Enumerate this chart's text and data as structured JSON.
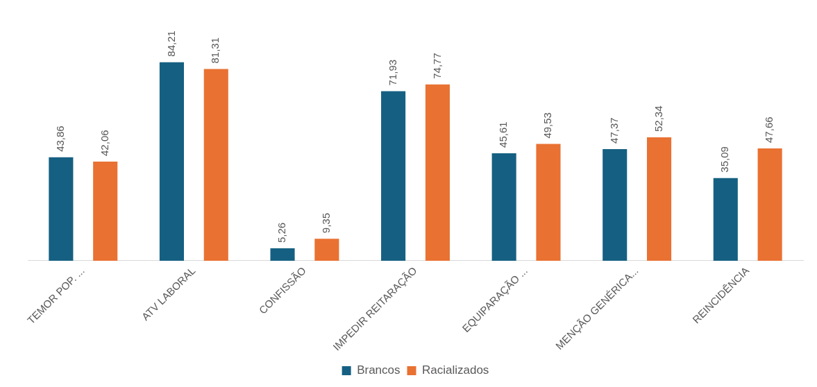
{
  "chart_data": {
    "type": "bar",
    "categories": [
      "TEMOR POP. ...",
      "ATV LABORAL",
      "CONFISSÃO",
      "IMPEDIR REITARAÇÃO",
      "EQUIPARAÇÃO ...",
      "MENÇÃO GENÉRICA...",
      "REINCIDÊNCIA"
    ],
    "series": [
      {
        "name": "Brancos",
        "color": "#156082",
        "values": [
          43.86,
          84.21,
          5.26,
          71.93,
          45.61,
          47.37,
          35.09
        ],
        "value_labels": [
          "43,86",
          "84,21",
          "5,26",
          "71,93",
          "45,61",
          "47,37",
          "35,09"
        ]
      },
      {
        "name": "Racializados",
        "color": "#e97132",
        "values": [
          42.06,
          81.31,
          9.35,
          74.77,
          49.53,
          52.34,
          47.66
        ],
        "value_labels": [
          "42,06",
          "81,31",
          "9,35",
          "74,77",
          "49,53",
          "52,34",
          "47,66"
        ]
      }
    ],
    "grid": false,
    "legend": "bottom"
  }
}
